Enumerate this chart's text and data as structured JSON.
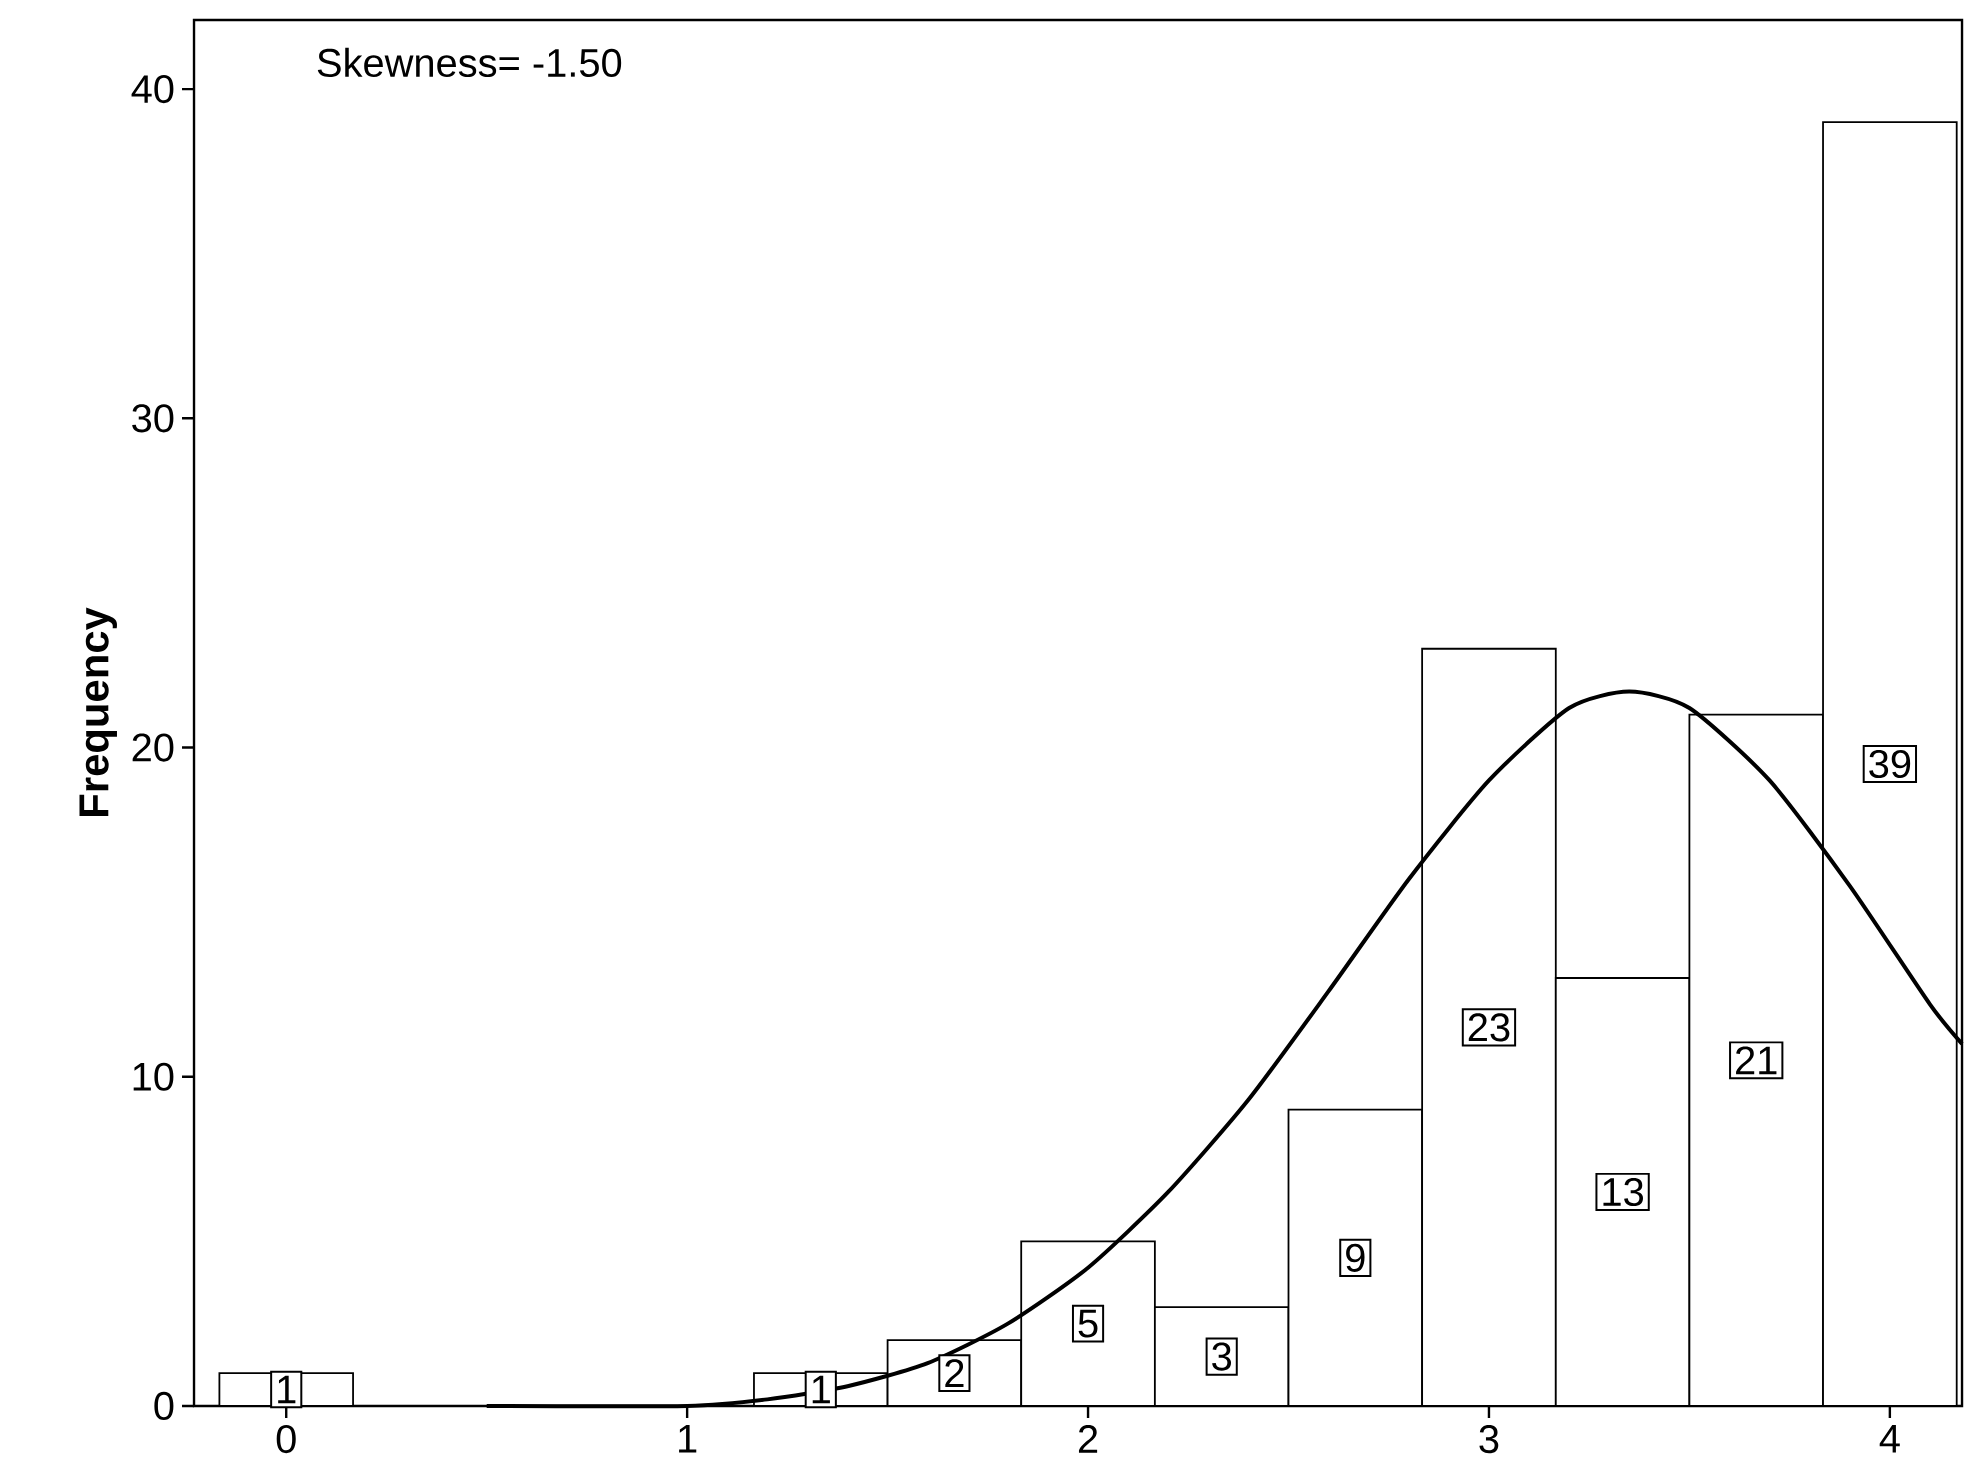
{
  "chart_data": {
    "type": "histogram",
    "ylabel": "Frequency",
    "bins": [
      -0.1667,
      0.1667,
      0.5,
      0.8333,
      1.1667,
      1.5,
      1.8333,
      2.1667,
      2.5,
      2.8333,
      3.1667,
      3.5,
      3.8333,
      4.1667
    ],
    "values": [
      1,
      0,
      0,
      0,
      1,
      2,
      5,
      3,
      9,
      23,
      13,
      21,
      39
    ],
    "value_labels": [
      "1",
      null,
      null,
      null,
      "1",
      "2",
      "5",
      "3",
      "9",
      "23",
      "13",
      "21",
      "39"
    ],
    "series": [
      {
        "type": "line",
        "color": "#000000",
        "x": [
          0.5,
          1.0,
          1.2,
          1.4,
          1.6,
          1.8,
          2.0,
          2.2,
          2.4,
          2.6,
          2.8,
          3.0,
          3.2,
          3.35,
          3.5,
          3.7,
          3.9,
          4.1,
          4.18
        ],
        "values": [
          0,
          0,
          0.2,
          0.6,
          1.3,
          2.5,
          4.2,
          6.5,
          9.3,
          12.6,
          16.0,
          19.0,
          21.2,
          21.7,
          21.2,
          19.0,
          15.8,
          12.2,
          11.0
        ]
      }
    ],
    "annotations": [
      "Skewness= -1.50"
    ],
    "xlim": [
      -0.23,
      4.18
    ],
    "ylim": [
      0,
      42.1
    ],
    "xticks": [
      0,
      1,
      2,
      3,
      4
    ],
    "yticks": [
      0,
      10,
      20,
      30,
      40
    ]
  }
}
